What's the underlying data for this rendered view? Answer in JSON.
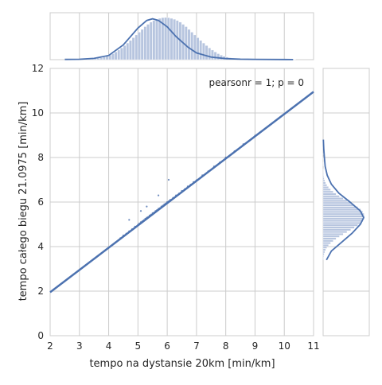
{
  "chart_data": {
    "type": "scatter",
    "title": "",
    "xlabel": "tempo na dystansie 20km [min/km]",
    "ylabel": "tempo całego biegu 21.0975 [min/km]",
    "xlim": [
      2,
      11
    ],
    "ylim": [
      0,
      12
    ],
    "xticks": [
      "2",
      "3",
      "4",
      "5",
      "6",
      "7",
      "8",
      "9",
      "10",
      "11"
    ],
    "yticks": [
      "0",
      "2",
      "4",
      "6",
      "8",
      "10",
      "12"
    ],
    "grid": true,
    "annotation": "pearsonr = 1; p = 0",
    "regression_line": {
      "x": [
        2,
        11
      ],
      "y": [
        1.95,
        10.95
      ]
    },
    "points": [
      [
        4.4,
        4.38
      ],
      [
        4.5,
        4.5
      ],
      [
        4.6,
        4.58
      ],
      [
        4.7,
        4.69
      ],
      [
        4.8,
        4.78
      ],
      [
        4.9,
        4.9
      ],
      [
        5.0,
        4.98
      ],
      [
        5.05,
        5.04
      ],
      [
        5.1,
        5.1
      ],
      [
        5.15,
        5.14
      ],
      [
        5.2,
        5.19
      ],
      [
        5.25,
        5.25
      ],
      [
        5.3,
        5.3
      ],
      [
        5.35,
        5.33
      ],
      [
        5.4,
        5.4
      ],
      [
        5.45,
        5.44
      ],
      [
        5.5,
        5.5
      ],
      [
        5.55,
        5.53
      ],
      [
        5.6,
        5.6
      ],
      [
        5.65,
        5.64
      ],
      [
        5.7,
        5.7
      ],
      [
        5.75,
        5.73
      ],
      [
        5.8,
        5.8
      ],
      [
        5.85,
        5.84
      ],
      [
        5.9,
        5.9
      ],
      [
        5.95,
        5.94
      ],
      [
        6.0,
        6.0
      ],
      [
        6.05,
        6.03
      ],
      [
        6.1,
        6.1
      ],
      [
        6.2,
        6.19
      ],
      [
        6.3,
        6.3
      ],
      [
        6.4,
        6.38
      ],
      [
        6.5,
        6.5
      ],
      [
        6.6,
        6.58
      ],
      [
        6.7,
        6.7
      ],
      [
        6.8,
        6.78
      ],
      [
        6.9,
        6.9
      ],
      [
        7.0,
        6.98
      ],
      [
        7.2,
        7.2
      ],
      [
        7.4,
        7.38
      ],
      [
        7.6,
        7.6
      ],
      [
        7.8,
        7.78
      ],
      [
        8.0,
        8.0
      ],
      [
        8.3,
        8.28
      ],
      [
        8.6,
        8.6
      ],
      [
        9.0,
        8.98
      ],
      [
        6.05,
        7.0
      ],
      [
        5.3,
        5.8
      ],
      [
        5.1,
        5.6
      ],
      [
        5.7,
        6.3
      ],
      [
        4.7,
        5.2
      ]
    ],
    "marginal_x": {
      "bins_start": 2.5,
      "bin_width": 0.1,
      "counts": [
        1,
        0,
        1,
        1,
        1,
        2,
        2,
        3,
        3,
        4,
        5,
        7,
        9,
        12,
        16,
        21,
        28,
        36,
        45,
        55,
        66,
        78,
        90,
        103,
        116,
        129,
        142,
        155,
        166,
        176,
        184,
        190,
        194,
        197,
        198,
        197,
        194,
        190,
        184,
        176,
        166,
        155,
        142,
        129,
        116,
        103,
        90,
        78,
        66,
        55,
        45,
        36,
        28,
        21,
        16,
        12,
        9,
        7,
        5,
        4,
        3,
        3,
        2,
        2,
        1,
        1,
        1,
        1,
        0,
        1,
        0,
        1,
        0,
        1,
        0,
        1,
        0,
        0,
        1
      ],
      "kde": [
        [
          2.5,
          0.005
        ],
        [
          3.0,
          0.01
        ],
        [
          3.5,
          0.03
        ],
        [
          4.0,
          0.1
        ],
        [
          4.5,
          0.35
        ],
        [
          5.0,
          0.75
        ],
        [
          5.3,
          0.93
        ],
        [
          5.5,
          0.97
        ],
        [
          5.7,
          0.93
        ],
        [
          6.0,
          0.78
        ],
        [
          6.3,
          0.55
        ],
        [
          6.7,
          0.3
        ],
        [
          7.0,
          0.16
        ],
        [
          7.5,
          0.06
        ],
        [
          8.0,
          0.025
        ],
        [
          8.5,
          0.012
        ],
        [
          9.0,
          0.008
        ],
        [
          10.0,
          0.003
        ],
        [
          10.3,
          0.002
        ]
      ]
    },
    "marginal_y": {
      "bins_start": 3.4,
      "bin_width": 0.1,
      "counts": [
        2,
        3,
        5,
        8,
        12,
        18,
        26,
        36,
        48,
        62,
        78,
        96,
        114,
        132,
        150,
        166,
        180,
        190,
        196,
        198,
        196,
        190,
        180,
        166,
        150,
        132,
        114,
        96,
        78,
        62,
        48,
        36,
        26,
        18,
        12,
        8,
        5,
        3,
        2,
        1,
        1,
        0,
        1,
        1,
        0,
        1,
        0,
        1,
        0,
        0,
        1,
        0,
        1
      ],
      "kde": [
        [
          3.4,
          0.08
        ],
        [
          3.8,
          0.2
        ],
        [
          4.2,
          0.45
        ],
        [
          4.6,
          0.7
        ],
        [
          5.0,
          0.9
        ],
        [
          5.3,
          0.98
        ],
        [
          5.6,
          0.9
        ],
        [
          6.0,
          0.65
        ],
        [
          6.4,
          0.38
        ],
        [
          6.8,
          0.2
        ],
        [
          7.2,
          0.1
        ],
        [
          7.6,
          0.05
        ],
        [
          8.0,
          0.03
        ],
        [
          8.4,
          0.015
        ],
        [
          8.8,
          0.005
        ]
      ]
    },
    "colors": {
      "series": "#4c72b0",
      "hist_fill": "#b7c5df",
      "grid": "#cccccc",
      "axis": "#cccccc"
    }
  }
}
